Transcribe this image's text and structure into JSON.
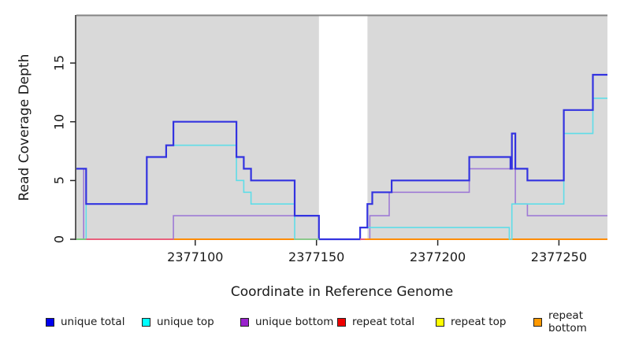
{
  "chart_data": {
    "type": "line",
    "subtype": "step",
    "title": "",
    "xlabel": "Coordinate in Reference Genome",
    "ylabel": "Read Coverage Depth",
    "x_range": [
      2377051,
      2377270
    ],
    "y_range": [
      0,
      19
    ],
    "grid": false,
    "x_tick_values": [
      2377100,
      2377150,
      2377200,
      2377250
    ],
    "x_tick_labels": [
      "2377100",
      "2377150",
      "2377200",
      "2377250"
    ],
    "y_tick_values": [
      0,
      5,
      10,
      15
    ],
    "y_tick_labels": [
      "0",
      "5",
      "10",
      "15"
    ],
    "panel_color": "#D9D9D9",
    "gap_region": {
      "start": 2377151,
      "end": 2377171,
      "color": "#FFFFFF"
    },
    "series": [
      {
        "name": "unique total",
        "marker_color": "#0000EE",
        "line_color": "#3333E0",
        "line_width": 2.2,
        "steps": [
          [
            2377051,
            6
          ],
          [
            2377055,
            3
          ],
          [
            2377080,
            7
          ],
          [
            2377088,
            8
          ],
          [
            2377091,
            10
          ],
          [
            2377117,
            7
          ],
          [
            2377120,
            6
          ],
          [
            2377123,
            5
          ],
          [
            2377141,
            2
          ],
          [
            2377151,
            0
          ],
          [
            2377168,
            1
          ],
          [
            2377171,
            3
          ],
          [
            2377173,
            4
          ],
          [
            2377181,
            5
          ],
          [
            2377213,
            7
          ],
          [
            2377230,
            6
          ],
          [
            2377230.6,
            9
          ],
          [
            2377232,
            6
          ],
          [
            2377237,
            5
          ],
          [
            2377252,
            11
          ],
          [
            2377264,
            14
          ]
        ]
      },
      {
        "name": "unique top",
        "marker_color": "#00FFFF",
        "line_color": "#5FDDE8",
        "line_width": 1.6,
        "steps": [
          [
            2377051,
            0
          ],
          [
            2377055,
            3
          ],
          [
            2377080,
            7
          ],
          [
            2377088,
            8
          ],
          [
            2377117,
            5
          ],
          [
            2377120,
            4
          ],
          [
            2377123,
            3
          ],
          [
            2377141,
            0
          ],
          [
            2377168,
            1
          ],
          [
            2377229.5,
            0
          ],
          [
            2377230.6,
            3
          ],
          [
            2377252,
            9
          ],
          [
            2377264,
            12
          ]
        ]
      },
      {
        "name": "unique bottom",
        "marker_color": "#9922CC",
        "line_color": "#9E7AD6",
        "line_width": 1.6,
        "steps": [
          [
            2377051,
            6
          ],
          [
            2377054,
            0
          ],
          [
            2377091,
            2
          ],
          [
            2377151,
            0
          ],
          [
            2377172,
            2
          ],
          [
            2377180,
            4
          ],
          [
            2377213,
            6
          ],
          [
            2377232,
            3
          ],
          [
            2377237,
            2
          ]
        ]
      },
      {
        "name": "repeat total",
        "marker_color": "#EE0000",
        "line_color": "#DD2222",
        "line_width": 1.6,
        "steps": [
          [
            2377051,
            0
          ]
        ]
      },
      {
        "name": "repeat top",
        "marker_color": "#FFFF00",
        "line_color": "#EEEE00",
        "line_width": 1.6,
        "steps": [
          [
            2377051,
            0
          ]
        ]
      },
      {
        "name": "repeat bottom",
        "marker_color": "#FF9900",
        "line_color": "#FF8C00",
        "line_width": 2,
        "steps": [
          [
            2377051,
            0
          ]
        ]
      }
    ],
    "zero_line_overlays": [
      {
        "start": 2377051,
        "end": 2377055,
        "color": "#7CC87C"
      },
      {
        "start": 2377055,
        "end": 2377091,
        "color": "#E8607C"
      },
      {
        "start": 2377141,
        "end": 2377151,
        "color": "#8BC98B"
      },
      {
        "start": 2377168,
        "end": 2377170,
        "color": "#E8607C"
      },
      {
        "start": 2377170,
        "end": 2377174,
        "color": "#FF8C00"
      }
    ],
    "legend": {
      "position": "bottom",
      "items": [
        {
          "label": "unique total",
          "color": "#0000EE"
        },
        {
          "label": "unique top",
          "color": "#00FFFF"
        },
        {
          "label": "unique bottom",
          "color": "#9922CC"
        },
        {
          "label": "repeat total",
          "color": "#EE0000"
        },
        {
          "label": "repeat top",
          "color": "#FFFF00"
        },
        {
          "label": "repeat bottom",
          "color": "#FF9900"
        }
      ]
    }
  }
}
